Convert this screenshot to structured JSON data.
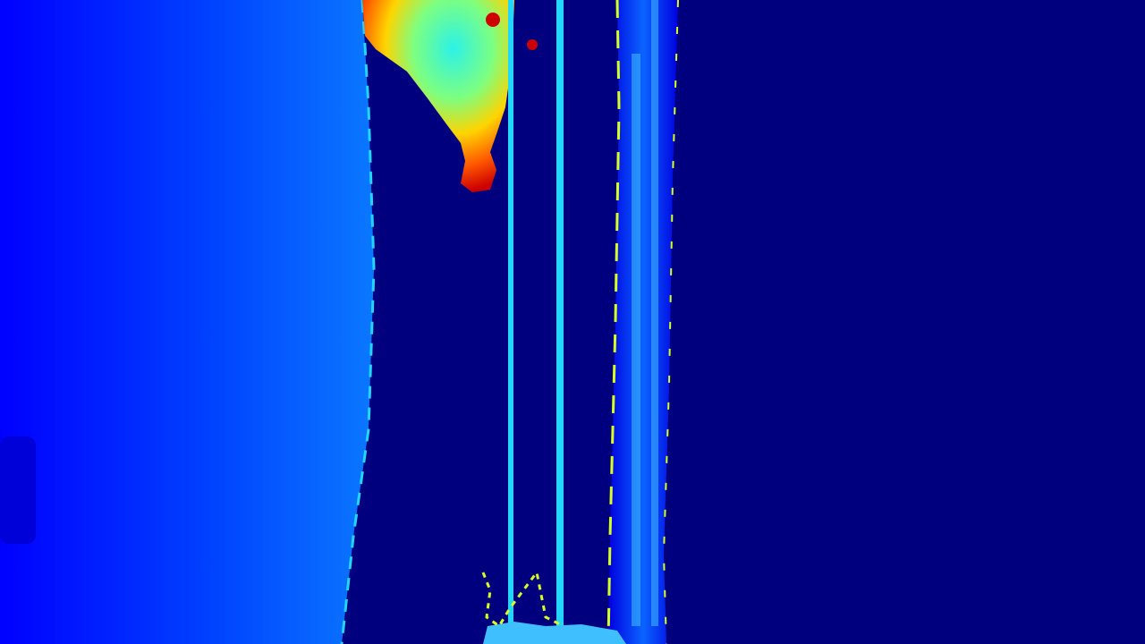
{
  "image": {
    "kind": "depth-map",
    "colormap": "jet",
    "colors": {
      "far_background": "#00007f",
      "wall_left": "#0000ff",
      "wall_mid": "#0040ff",
      "wall_right": "#0a78ff",
      "shadow_patch": "#0000d8",
      "pillar_light": "#0a64ff",
      "pillar_dark": "#0000e0",
      "edge_cyan": "#22d6ff",
      "edge_yellow": "#d8ff24",
      "hot_red": "#cc0000",
      "hot_orange": "#ff5a00",
      "hot_yellow": "#ffd400",
      "hot_green": "#7dff80",
      "hot_cyan": "#2cf2e8",
      "floor_cyan": "#40bfff"
    }
  }
}
